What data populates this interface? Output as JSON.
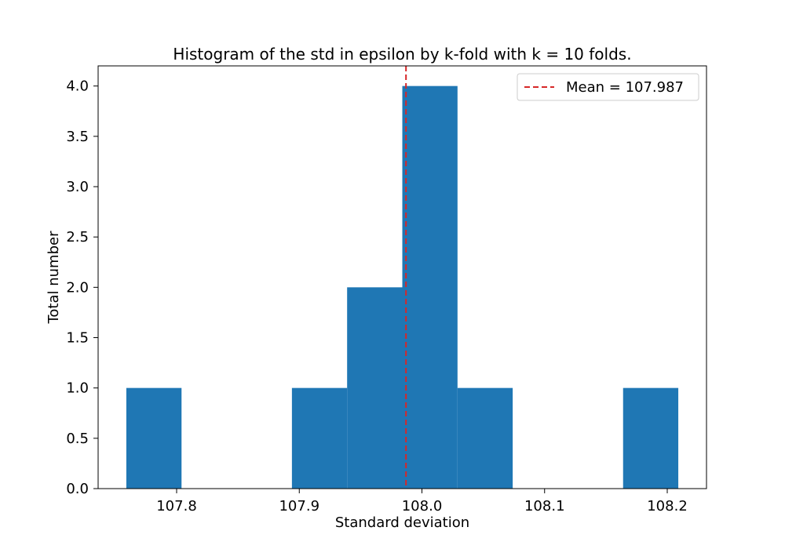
{
  "chart_data": {
    "type": "bar",
    "subtype": "histogram",
    "title": "Histogram of the std in epsilon by k-fold with k = 10 folds.",
    "xlabel": "Standard deviation",
    "ylabel": "Total number",
    "xlim": [
      107.736,
      108.232
    ],
    "ylim": [
      0.0,
      4.2
    ],
    "xticks": [
      107.8,
      107.9,
      108.0,
      108.1,
      108.2
    ],
    "xtick_labels": [
      "107.8",
      "107.9",
      "108.0",
      "108.1",
      "108.2"
    ],
    "yticks": [
      0.0,
      0.5,
      1.0,
      1.5,
      2.0,
      2.5,
      3.0,
      3.5,
      4.0
    ],
    "ytick_labels": [
      "0.0",
      "0.5",
      "1.0",
      "1.5",
      "2.0",
      "2.5",
      "3.0",
      "3.5",
      "4.0"
    ],
    "bins": [
      {
        "x0": 107.759,
        "x1": 107.804,
        "count": 1
      },
      {
        "x0": 107.804,
        "x1": 107.849,
        "count": 0
      },
      {
        "x0": 107.849,
        "x1": 107.894,
        "count": 0
      },
      {
        "x0": 107.894,
        "x1": 107.939,
        "count": 1
      },
      {
        "x0": 107.939,
        "x1": 107.984,
        "count": 2
      },
      {
        "x0": 107.984,
        "x1": 108.029,
        "count": 4
      },
      {
        "x0": 108.029,
        "x1": 108.074,
        "count": 1
      },
      {
        "x0": 108.074,
        "x1": 108.119,
        "count": 0
      },
      {
        "x0": 108.119,
        "x1": 108.164,
        "count": 0
      },
      {
        "x0": 108.164,
        "x1": 108.209,
        "count": 1
      }
    ],
    "mean_line": {
      "x": 107.987,
      "label": "Mean = 107.987"
    },
    "legend": {
      "placement": "top-right",
      "entries": [
        "Mean = 107.987"
      ]
    },
    "grid": false,
    "colors": {
      "bar": "#1f77b4",
      "mean_line": "#d62728"
    }
  }
}
